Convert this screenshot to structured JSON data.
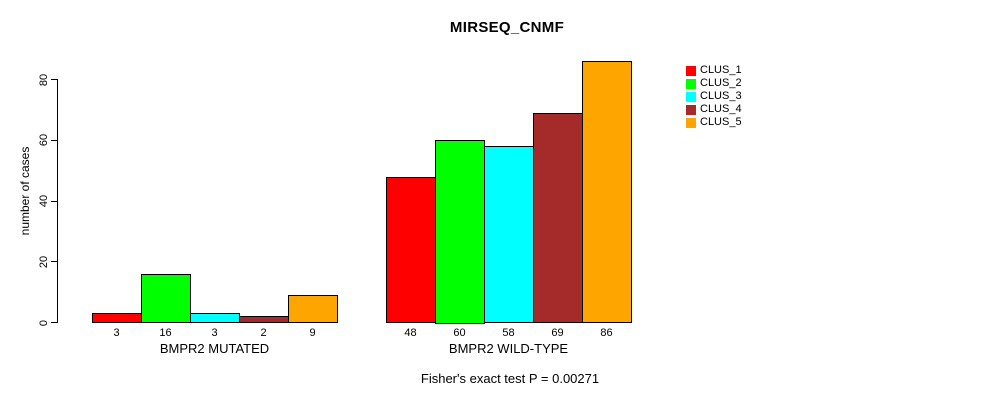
{
  "chart_data": {
    "type": "bar",
    "title": "MIRSEQ_CNMF",
    "ylabel": "number of cases",
    "xlabel": "",
    "ylim": [
      0,
      87
    ],
    "yticks": [
      0,
      20,
      40,
      60,
      80
    ],
    "grid": false,
    "legend_position": "right",
    "bar_value_labels_shown": true,
    "categories": [
      "BMPR2 MUTATED",
      "BMPR2 WILD-TYPE"
    ],
    "series": [
      {
        "name": "CLUS_1",
        "color": "#FF0000",
        "values": [
          3,
          48
        ]
      },
      {
        "name": "CLUS_2",
        "color": "#00FF00",
        "values": [
          16,
          60
        ]
      },
      {
        "name": "CLUS_3",
        "color": "#00FFFF",
        "values": [
          3,
          58
        ]
      },
      {
        "name": "CLUS_4",
        "color": "#A52A2A",
        "values": [
          2,
          69
        ]
      },
      {
        "name": "CLUS_5",
        "color": "#FFA500",
        "values": [
          9,
          86
        ]
      }
    ],
    "annotation": "Fisher's exact test P = 0.00271"
  }
}
